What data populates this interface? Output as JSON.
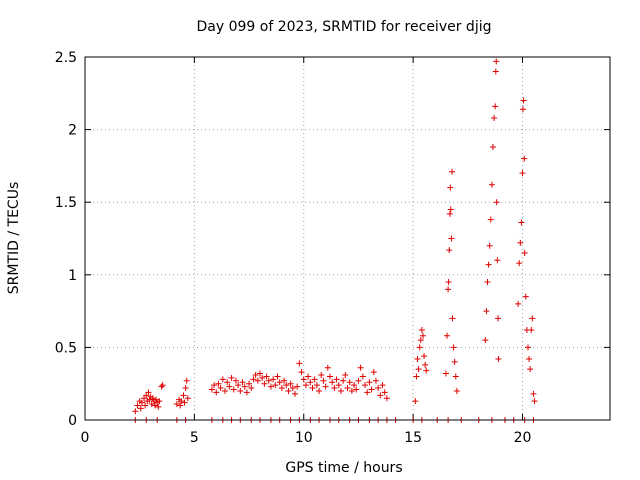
{
  "chart_data": {
    "type": "scatter",
    "title": "Day 099 of 2023, SRMTID for receiver djig",
    "xlabel": "GPS time / hours",
    "ylabel": "SRMTID / TECUs",
    "xlim": [
      0,
      24
    ],
    "ylim": [
      0,
      2.5
    ],
    "x_ticks": [
      0,
      5,
      10,
      15,
      20
    ],
    "x_tick_labels": [
      "0",
      "5",
      "10",
      "15",
      "20"
    ],
    "y_ticks": [
      0,
      0.5,
      1,
      1.5,
      2,
      2.5
    ],
    "y_tick_labels": [
      "0",
      "0.5",
      "1",
      "1.5",
      "2",
      "2.5"
    ],
    "grid": true,
    "marker": "+",
    "marker_color": "#e00000",
    "series": [
      {
        "name": "SRMTID",
        "points": [
          [
            2.3,
            0.06
          ],
          [
            2.4,
            0.1
          ],
          [
            2.5,
            0.13
          ],
          [
            2.55,
            0.08
          ],
          [
            2.6,
            0.12
          ],
          [
            2.7,
            0.15
          ],
          [
            2.75,
            0.1
          ],
          [
            2.8,
            0.17
          ],
          [
            2.85,
            0.13
          ],
          [
            2.9,
            0.19
          ],
          [
            2.95,
            0.14
          ],
          [
            3.0,
            0.16
          ],
          [
            3.05,
            0.11
          ],
          [
            3.1,
            0.15
          ],
          [
            3.15,
            0.13
          ],
          [
            3.2,
            0.1
          ],
          [
            3.25,
            0.14
          ],
          [
            3.3,
            0.12
          ],
          [
            3.35,
            0.09
          ],
          [
            3.4,
            0.13
          ],
          [
            3.5,
            0.23
          ],
          [
            3.55,
            0.24
          ],
          [
            4.2,
            0.11
          ],
          [
            4.3,
            0.14
          ],
          [
            4.35,
            0.1
          ],
          [
            4.4,
            0.13
          ],
          [
            4.5,
            0.17
          ],
          [
            4.55,
            0.12
          ],
          [
            4.6,
            0.22
          ],
          [
            4.65,
            0.27
          ],
          [
            4.7,
            0.15
          ],
          [
            5.8,
            0.21
          ],
          [
            5.9,
            0.24
          ],
          [
            6.0,
            0.19
          ],
          [
            6.1,
            0.25
          ],
          [
            6.2,
            0.22
          ],
          [
            6.3,
            0.28
          ],
          [
            6.4,
            0.2
          ],
          [
            6.5,
            0.26
          ],
          [
            6.6,
            0.23
          ],
          [
            6.7,
            0.29
          ],
          [
            6.8,
            0.21
          ],
          [
            6.9,
            0.27
          ],
          [
            7.0,
            0.24
          ],
          [
            7.1,
            0.2
          ],
          [
            7.2,
            0.26
          ],
          [
            7.3,
            0.23
          ],
          [
            7.4,
            0.19
          ],
          [
            7.5,
            0.25
          ],
          [
            7.6,
            0.22
          ],
          [
            7.7,
            0.28
          ],
          [
            7.8,
            0.31
          ],
          [
            7.9,
            0.27
          ],
          [
            8.0,
            0.32
          ],
          [
            8.1,
            0.29
          ],
          [
            8.2,
            0.25
          ],
          [
            8.3,
            0.3
          ],
          [
            8.4,
            0.27
          ],
          [
            8.5,
            0.23
          ],
          [
            8.6,
            0.28
          ],
          [
            8.7,
            0.24
          ],
          [
            8.8,
            0.3
          ],
          [
            8.9,
            0.26
          ],
          [
            9.0,
            0.22
          ],
          [
            9.1,
            0.27
          ],
          [
            9.2,
            0.24
          ],
          [
            9.3,
            0.2
          ],
          [
            9.4,
            0.25
          ],
          [
            9.5,
            0.22
          ],
          [
            9.6,
            0.18
          ],
          [
            9.7,
            0.23
          ],
          [
            9.8,
            0.39
          ],
          [
            9.9,
            0.33
          ],
          [
            10.0,
            0.28
          ],
          [
            10.1,
            0.24
          ],
          [
            10.2,
            0.3
          ],
          [
            10.3,
            0.26
          ],
          [
            10.4,
            0.22
          ],
          [
            10.5,
            0.28
          ],
          [
            10.6,
            0.24
          ],
          [
            10.7,
            0.2
          ],
          [
            10.8,
            0.31
          ],
          [
            10.9,
            0.27
          ],
          [
            11.0,
            0.23
          ],
          [
            11.1,
            0.36
          ],
          [
            11.2,
            0.3
          ],
          [
            11.3,
            0.26
          ],
          [
            11.4,
            0.22
          ],
          [
            11.5,
            0.28
          ],
          [
            11.6,
            0.24
          ],
          [
            11.7,
            0.2
          ],
          [
            11.8,
            0.27
          ],
          [
            11.9,
            0.31
          ],
          [
            12.0,
            0.22
          ],
          [
            12.1,
            0.26
          ],
          [
            12.2,
            0.2
          ],
          [
            12.3,
            0.24
          ],
          [
            12.4,
            0.21
          ],
          [
            12.5,
            0.27
          ],
          [
            12.6,
            0.36
          ],
          [
            12.7,
            0.3
          ],
          [
            12.8,
            0.24
          ],
          [
            12.9,
            0.19
          ],
          [
            13.0,
            0.26
          ],
          [
            13.1,
            0.21
          ],
          [
            13.2,
            0.33
          ],
          [
            13.3,
            0.27
          ],
          [
            13.4,
            0.22
          ],
          [
            13.5,
            0.17
          ],
          [
            13.6,
            0.24
          ],
          [
            13.7,
            0.19
          ],
          [
            13.8,
            0.15
          ],
          [
            15.1,
            0.13
          ],
          [
            15.15,
            0.3
          ],
          [
            15.2,
            0.42
          ],
          [
            15.25,
            0.35
          ],
          [
            15.3,
            0.5
          ],
          [
            15.35,
            0.55
          ],
          [
            15.4,
            0.62
          ],
          [
            15.45,
            0.58
          ],
          [
            15.5,
            0.44
          ],
          [
            15.55,
            0.38
          ],
          [
            15.6,
            0.34
          ],
          [
            16.5,
            0.32
          ],
          [
            16.55,
            0.58
          ],
          [
            16.6,
            0.9
          ],
          [
            16.62,
            0.95
          ],
          [
            16.65,
            1.17
          ],
          [
            16.68,
            1.42
          ],
          [
            16.7,
            1.6
          ],
          [
            16.72,
            1.45
          ],
          [
            16.75,
            1.25
          ],
          [
            16.78,
            1.71
          ],
          [
            16.8,
            0.7
          ],
          [
            16.85,
            0.5
          ],
          [
            16.9,
            0.4
          ],
          [
            16.95,
            0.3
          ],
          [
            17.0,
            0.2
          ],
          [
            18.3,
            0.55
          ],
          [
            18.35,
            0.75
          ],
          [
            18.4,
            0.95
          ],
          [
            18.45,
            1.07
          ],
          [
            18.5,
            1.2
          ],
          [
            18.55,
            1.38
          ],
          [
            18.6,
            1.62
          ],
          [
            18.65,
            1.88
          ],
          [
            18.7,
            2.08
          ],
          [
            18.75,
            2.16
          ],
          [
            18.78,
            2.4
          ],
          [
            18.8,
            2.47
          ],
          [
            18.82,
            1.5
          ],
          [
            18.85,
            1.1
          ],
          [
            18.88,
            0.7
          ],
          [
            18.9,
            0.42
          ],
          [
            19.8,
            0.8
          ],
          [
            19.85,
            1.08
          ],
          [
            19.9,
            1.22
          ],
          [
            19.95,
            1.36
          ],
          [
            20.0,
            1.7
          ],
          [
            20.02,
            2.14
          ],
          [
            20.05,
            2.2
          ],
          [
            20.08,
            1.8
          ],
          [
            20.1,
            1.15
          ],
          [
            20.15,
            0.85
          ],
          [
            20.2,
            0.62
          ],
          [
            20.25,
            0.5
          ],
          [
            20.3,
            0.42
          ],
          [
            20.35,
            0.35
          ],
          [
            20.4,
            0.62
          ],
          [
            20.45,
            0.7
          ],
          [
            20.5,
            0.18
          ],
          [
            20.55,
            0.13
          ]
        ]
      },
      {
        "name": "zero",
        "points": [
          [
            2.3,
            0
          ],
          [
            2.8,
            0
          ],
          [
            3.3,
            0
          ],
          [
            4.2,
            0
          ],
          [
            4.6,
            0
          ],
          [
            5.8,
            0
          ],
          [
            6.3,
            0
          ],
          [
            6.7,
            0
          ],
          [
            7.1,
            0
          ],
          [
            7.6,
            0
          ],
          [
            8.0,
            0
          ],
          [
            8.5,
            0
          ],
          [
            8.9,
            0
          ],
          [
            9.4,
            0
          ],
          [
            9.8,
            0
          ],
          [
            10.3,
            0
          ],
          [
            10.7,
            0
          ],
          [
            11.2,
            0
          ],
          [
            11.6,
            0
          ],
          [
            12.1,
            0
          ],
          [
            12.5,
            0
          ],
          [
            13.0,
            0
          ],
          [
            13.4,
            0
          ],
          [
            13.8,
            0
          ],
          [
            14.2,
            0
          ],
          [
            15.0,
            0
          ],
          [
            15.4,
            0
          ],
          [
            16.1,
            0
          ],
          [
            16.6,
            0
          ],
          [
            17.2,
            0
          ],
          [
            18.0,
            0
          ],
          [
            18.6,
            0
          ],
          [
            19.2,
            0
          ],
          [
            19.6,
            0
          ],
          [
            20.1,
            0
          ],
          [
            20.5,
            0
          ]
        ]
      }
    ]
  }
}
